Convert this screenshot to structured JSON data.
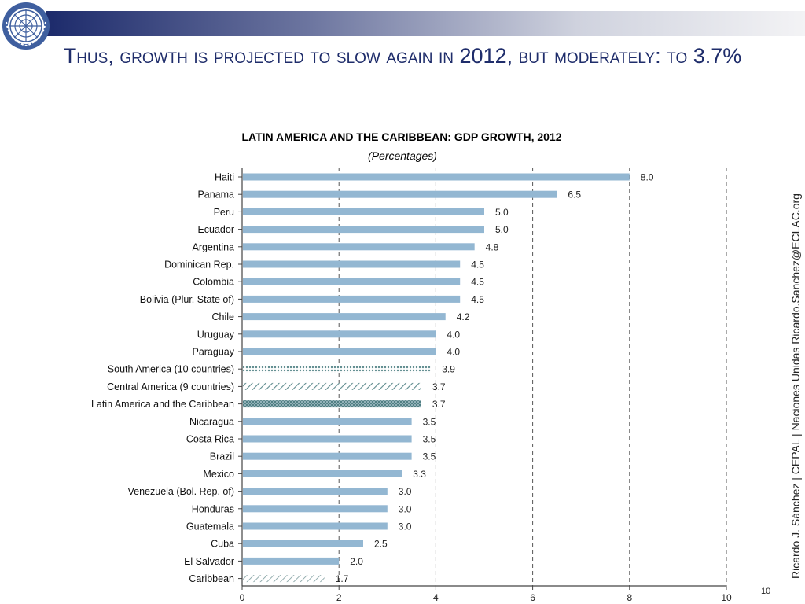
{
  "slide": {
    "title": "Thus, growth is projected to slow again in 2012, but moderately: to 3.7%",
    "side_credit": "Ricardo J. Sánchez | CEPAL | Naciones Unidas   Ricardo.Sanchez@ECLAC.org",
    "page_number": "10",
    "logo_icon": "un-emblem-icon"
  },
  "colors": {
    "bar": "#93b7d2",
    "hatch": "#5f8c8f",
    "title": "#1f2d6b",
    "grid": "#555555"
  },
  "chart_data": {
    "type": "bar",
    "orientation": "horizontal",
    "title": "LATIN AMERICA AND THE CARIBBEAN: GDP GROWTH, 2012",
    "subtitle": "(Percentages)",
    "xlabel": "",
    "ylabel": "",
    "xlim": [
      0,
      10
    ],
    "xticks": [
      0,
      2,
      4,
      6,
      8,
      10
    ],
    "grid": "vertical dashed",
    "categories": [
      "Haiti",
      "Panama",
      "Peru",
      "Ecuador",
      "Argentina",
      "Dominican Rep.",
      "Colombia",
      "Bolivia (Plur. State of)",
      "Chile",
      "Uruguay",
      "Paraguay",
      "South America (10 countries)",
      "Central America (9 countries)",
      "Latin America and the Caribbean",
      "Nicaragua",
      "Costa Rica",
      "Brazil",
      "Mexico",
      "Venezuela (Bol. Rep. of)",
      "Honduras",
      "Guatemala",
      "Cuba",
      "El Salvador",
      "Caribbean"
    ],
    "values": [
      8.0,
      6.5,
      5.0,
      5.0,
      4.8,
      4.5,
      4.5,
      4.5,
      4.2,
      4.0,
      4.0,
      3.9,
      3.7,
      3.7,
      3.5,
      3.5,
      3.5,
      3.3,
      3.0,
      3.0,
      3.0,
      2.5,
      2.0,
      1.7
    ],
    "labels": [
      "8.0",
      "6.5",
      "5.0",
      "5.0",
      "4.8",
      "4.5",
      "4.5",
      "4.5",
      "4.2",
      "4.0",
      "4.0",
      "3.9",
      "3.7",
      "3.7",
      "3.5",
      "3.5",
      "3.5",
      "3.3",
      "3.0",
      "3.0",
      "3.0",
      "2.5",
      "2.0",
      "1.7"
    ],
    "styles": [
      "solid",
      "solid",
      "solid",
      "solid",
      "solid",
      "solid",
      "solid",
      "solid",
      "solid",
      "solid",
      "solid",
      "dotted",
      "hatch",
      "crosshatch",
      "solid",
      "solid",
      "solid",
      "solid",
      "solid",
      "solid",
      "solid",
      "solid",
      "solid",
      "hatch-light"
    ]
  }
}
